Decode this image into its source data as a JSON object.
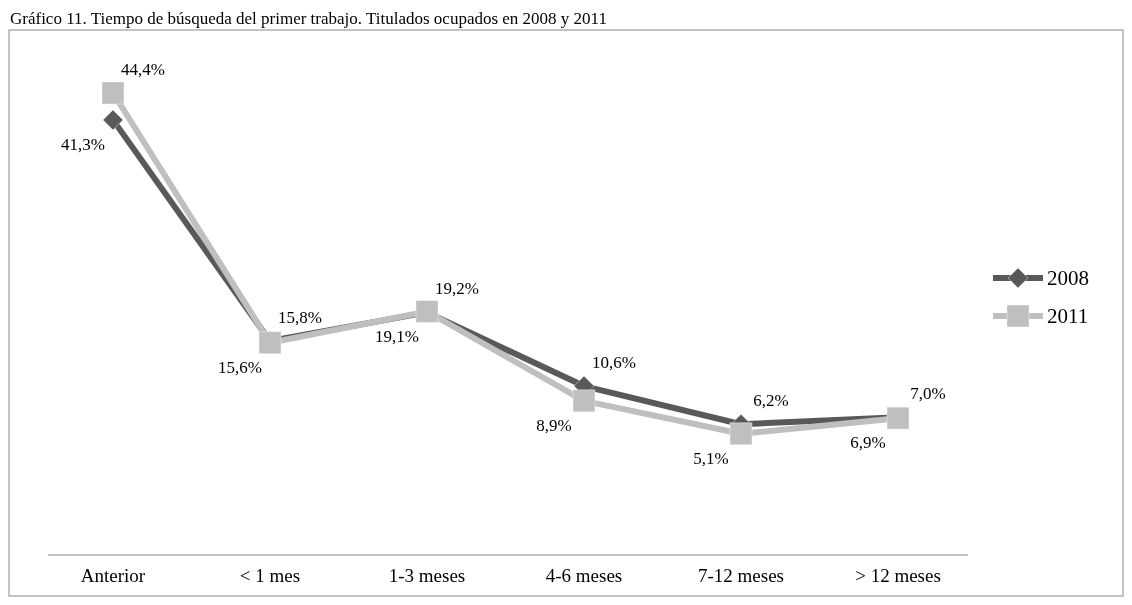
{
  "chart_data": {
    "type": "line",
    "title": "Gráfico 11. Tiempo de búsqueda del primer trabajo. Titulados ocupados en 2008 y 2011",
    "categories": [
      "Anterior",
      "< 1 mes",
      "1-3 meses",
      "4-6 meses",
      "7-12 meses",
      "> 12 meses"
    ],
    "series": [
      {
        "name": "2008",
        "color": "#595959",
        "marker": "diamond",
        "values": [
          41.3,
          15.8,
          19.1,
          10.6,
          6.2,
          7.0
        ],
        "value_labels": [
          "41,3%",
          "15,8%",
          "19,1%",
          "10,6%",
          "6,2%",
          "7,0%"
        ]
      },
      {
        "name": "2011",
        "color": "#bfbfbf",
        "marker": "square",
        "values": [
          44.4,
          15.6,
          19.2,
          8.9,
          5.1,
          6.9
        ],
        "value_labels": [
          "44,4%",
          "15,6%",
          "19,2%",
          "8,9%",
          "5,1%",
          "6,9%"
        ]
      }
    ],
    "legend": "right",
    "grid": false
  }
}
